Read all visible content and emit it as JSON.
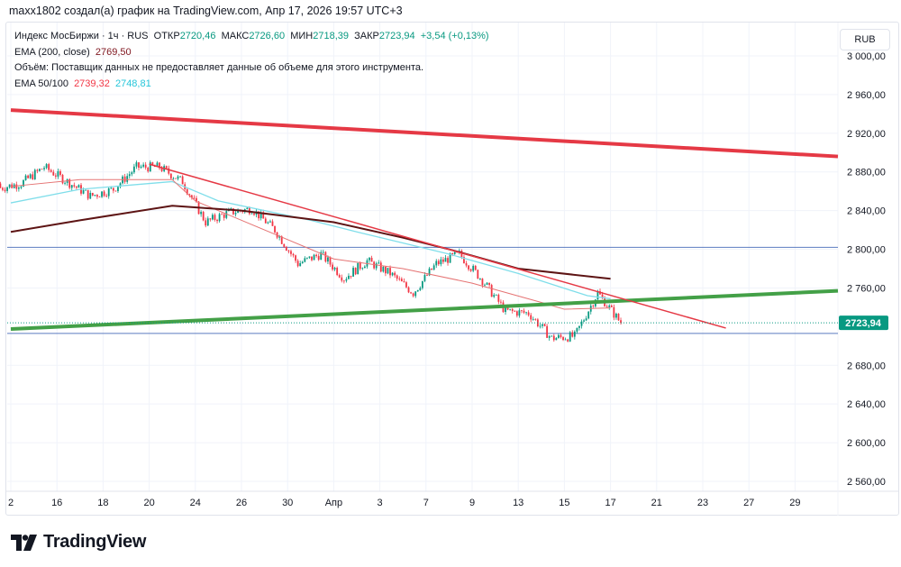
{
  "header": {
    "caption": "maxx1802 создал(а) график на TradingView.com, Апр 17, 2026 19:57 UTC+3"
  },
  "legend": {
    "symbol": "Индекс МосБиржи · 1ч · RUS",
    "open_label": "ОТКР",
    "open": "2720,46",
    "high_label": "МАКС",
    "high": "2726,60",
    "low_label": "МИН",
    "low": "2718,39",
    "close_label": "ЗАКР",
    "close": "2723,94",
    "change": "+3,54 (+0,13%)",
    "ema200_label": "EMA (200, close)",
    "ema200": "2769,50",
    "volume_note": "Объём: Поставщик данных не предоставляет данные об объеме для этого инструмента.",
    "ema50_100_label": "EMA 50/100",
    "ema50": "2739,32",
    "ema100": "2748,81"
  },
  "currency": "RUB",
  "last_price_label": "2723,94",
  "brand": {
    "name": "TradingView"
  },
  "colors": {
    "up": "#089981",
    "down": "#f23645",
    "ema200": "#5d1414",
    "ema100": "#80deea",
    "ema50": "#e57373",
    "trend_red": "#e53945",
    "trend_green": "#43a047",
    "hline": "#5b7bc0",
    "last_price": "#089981"
  },
  "chart_data": {
    "type": "candlestick",
    "interval": "1h",
    "ylim": [
      2540,
      3020
    ],
    "yticks": [
      "3 000,00",
      "2 960,00",
      "2 920,00",
      "2 880,00",
      "2 840,00",
      "2 800,00",
      "2 760,00",
      "2 680,00",
      "2 640,00",
      "2 600,00",
      "2 560,00"
    ],
    "ytick_values": [
      3000,
      2960,
      2920,
      2880,
      2840,
      2800,
      2760,
      2680,
      2640,
      2600,
      2560
    ],
    "xticks": [
      {
        "label": "2",
        "date": "2026-03-12"
      },
      {
        "label": "16",
        "date": "2026-03-16"
      },
      {
        "label": "18",
        "date": "2026-03-18"
      },
      {
        "label": "20",
        "date": "2026-03-20"
      },
      {
        "label": "24",
        "date": "2026-03-24"
      },
      {
        "label": "26",
        "date": "2026-03-26"
      },
      {
        "label": "30",
        "date": "2026-03-30"
      },
      {
        "label": "Апр",
        "date": "2026-04-01"
      },
      {
        "label": "3",
        "date": "2026-04-03"
      },
      {
        "label": "7",
        "date": "2026-04-07"
      },
      {
        "label": "9",
        "date": "2026-04-09"
      },
      {
        "label": "13",
        "date": "2026-04-13"
      },
      {
        "label": "15",
        "date": "2026-04-15"
      },
      {
        "label": "17",
        "date": "2026-04-17"
      },
      {
        "label": "21",
        "date": "2026-04-21"
      },
      {
        "label": "23",
        "date": "2026-04-23"
      },
      {
        "label": "27",
        "date": "2026-04-27"
      },
      {
        "label": "29",
        "date": "2026-04-29"
      }
    ],
    "daily_close_approx": [
      [
        "2026-03-12",
        2868
      ],
      [
        "2026-03-13",
        2885
      ],
      [
        "2026-03-16",
        2870
      ],
      [
        "2026-03-17",
        2855
      ],
      [
        "2026-03-18",
        2862
      ],
      [
        "2026-03-19",
        2885
      ],
      [
        "2026-03-20",
        2885
      ],
      [
        "2026-03-23",
        2870
      ],
      [
        "2026-03-24",
        2828
      ],
      [
        "2026-03-25",
        2838
      ],
      [
        "2026-03-26",
        2842
      ],
      [
        "2026-03-27",
        2820
      ],
      [
        "2026-03-30",
        2785
      ],
      [
        "2026-03-31",
        2795
      ],
      [
        "2026-04-01",
        2770
      ],
      [
        "2026-04-02",
        2788
      ],
      [
        "2026-04-03",
        2775
      ],
      [
        "2026-04-06",
        2755
      ],
      [
        "2026-04-07",
        2785
      ],
      [
        "2026-04-08",
        2795
      ],
      [
        "2026-04-09",
        2768
      ],
      [
        "2026-04-10",
        2736
      ],
      [
        "2026-04-13",
        2734
      ],
      [
        "2026-04-14",
        2708
      ],
      [
        "2026-04-15",
        2710
      ],
      [
        "2026-04-16",
        2755
      ],
      [
        "2026-04-17",
        2723.94
      ]
    ],
    "last_close": 2723.94,
    "ema200": [
      [
        "2026-03-12",
        2818
      ],
      [
        "2026-03-17",
        2830
      ],
      [
        "2026-03-23",
        2845
      ],
      [
        "2026-03-26",
        2840
      ],
      [
        "2026-04-01",
        2828
      ],
      [
        "2026-04-06",
        2812
      ],
      [
        "2026-04-08",
        2800
      ],
      [
        "2026-04-13",
        2780
      ],
      [
        "2026-04-17",
        2769.5
      ]
    ],
    "ema100": [
      [
        "2026-03-12",
        2848
      ],
      [
        "2026-03-17",
        2862
      ],
      [
        "2026-03-23",
        2870
      ],
      [
        "2026-03-25",
        2850
      ],
      [
        "2026-03-31",
        2830
      ],
      [
        "2026-04-02",
        2818
      ],
      [
        "2026-04-08",
        2795
      ],
      [
        "2026-04-13",
        2775
      ],
      [
        "2026-04-16",
        2752
      ],
      [
        "2026-04-17",
        2748.81
      ]
    ],
    "ema50": [
      [
        "2026-03-12",
        2865
      ],
      [
        "2026-03-17",
        2872
      ],
      [
        "2026-03-23",
        2872
      ],
      [
        "2026-03-24",
        2850
      ],
      [
        "2026-03-27",
        2820
      ],
      [
        "2026-04-01",
        2790
      ],
      [
        "2026-04-06",
        2780
      ],
      [
        "2026-04-09",
        2765
      ],
      [
        "2026-04-14",
        2745
      ],
      [
        "2026-04-15",
        2738
      ],
      [
        "2026-04-17",
        2739.32
      ]
    ],
    "drawings": [
      {
        "kind": "trendline",
        "color": "trend_red",
        "from": [
          "2026-03-12",
          2944
        ],
        "to": [
          "2026-05-01",
          2896
        ]
      },
      {
        "kind": "trendline",
        "color": "trend_green",
        "from": [
          "2026-03-12",
          2717.5
        ],
        "to": [
          "2026-05-01",
          2757
        ]
      },
      {
        "kind": "trendline",
        "color": "trend_red_thin",
        "from": [
          "2026-03-20",
          2888
        ],
        "to": [
          "2026-04-24",
          2718.5
        ]
      },
      {
        "kind": "hline",
        "price": 2802
      },
      {
        "kind": "hline",
        "price": 2713
      }
    ]
  }
}
